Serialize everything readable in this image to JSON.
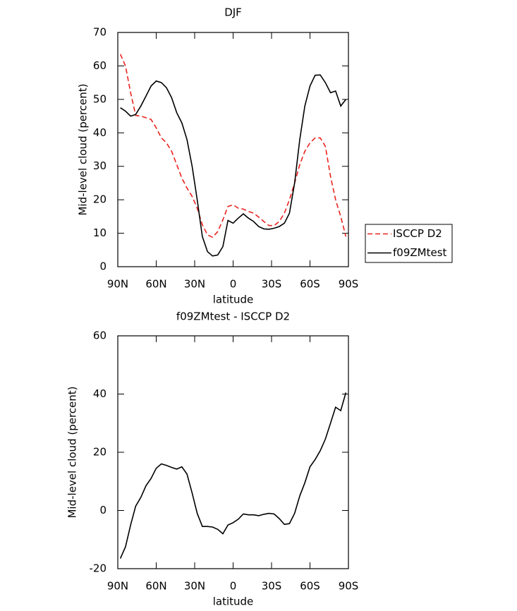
{
  "chart_data": [
    {
      "type": "line",
      "title": "DJF",
      "x_label": "latitude",
      "y_label": "Mid-level cloud (percent)",
      "x": [
        88,
        84,
        80,
        76,
        72,
        68,
        64,
        60,
        56,
        52,
        48,
        44,
        40,
        36,
        32,
        28,
        24,
        20,
        16,
        12,
        8,
        4,
        0,
        -4,
        -8,
        -12,
        -16,
        -20,
        -24,
        -28,
        -32,
        -36,
        -40,
        -44,
        -48,
        -52,
        -56,
        -60,
        -64,
        -68,
        -72,
        -76,
        -80,
        -84,
        -88
      ],
      "series": [
        {
          "name": "ISCCP D2",
          "color": "#e8231e",
          "dashed": true,
          "values": [
            63.5,
            60,
            52,
            45.2,
            45,
            44.5,
            44,
            41.5,
            38.5,
            37,
            34.5,
            30.5,
            26.5,
            23.5,
            21,
            17.5,
            12.5,
            9.5,
            8.8,
            10.5,
            14,
            18,
            18.5,
            17.5,
            17.2,
            16.5,
            16,
            14.8,
            13.5,
            12.3,
            12.3,
            13.5,
            16,
            20,
            25,
            30.5,
            34.5,
            37,
            38.5,
            38.5,
            36,
            27,
            20,
            15,
            9
          ]
        },
        {
          "name": "f09ZMtest",
          "color": "#000000",
          "dashed": false,
          "values": [
            47.5,
            46.5,
            45,
            45.5,
            48,
            51,
            54,
            55.5,
            55,
            53.5,
            50.5,
            46,
            43,
            38,
            30,
            20,
            9,
            4.5,
            3.2,
            3.5,
            6,
            13.8,
            13,
            14.5,
            15.8,
            14.5,
            13.5,
            12,
            11.3,
            11.2,
            11.5,
            12,
            13,
            16,
            25,
            38,
            48,
            54,
            57.2,
            57.3,
            55,
            52,
            52.5,
            48,
            50
          ]
        }
      ],
      "xlim": [
        90,
        -90
      ],
      "xticks": [
        {
          "value": 90,
          "label": "90N"
        },
        {
          "value": 60,
          "label": "60N"
        },
        {
          "value": 30,
          "label": "30N"
        },
        0,
        {
          "value": -30,
          "label": "30S"
        },
        {
          "value": -60,
          "label": "60S"
        },
        {
          "value": -90,
          "label": "90S"
        }
      ],
      "ylim": [
        0,
        70
      ],
      "yticks": [
        0,
        10,
        20,
        30,
        40,
        50,
        60,
        70
      ],
      "legend": "outside-right"
    },
    {
      "type": "line",
      "title": "f09ZMtest - ISCCP D2",
      "x_label": "latitude",
      "y_label": "Mid-level cloud (percent)",
      "x": [
        88,
        84,
        80,
        76,
        72,
        68,
        64,
        60,
        56,
        52,
        48,
        44,
        40,
        36,
        32,
        28,
        24,
        20,
        16,
        12,
        8,
        4,
        0,
        -4,
        -8,
        -12,
        -16,
        -20,
        -24,
        -28,
        -32,
        -36,
        -40,
        -44,
        -48,
        -52,
        -56,
        -60,
        -64,
        -68,
        -72,
        -76,
        -80,
        -84,
        -88
      ],
      "series": [
        {
          "color": "#000000",
          "dashed": false,
          "values": [
            -16.5,
            -12.5,
            -5,
            1.5,
            4.5,
            8.5,
            11,
            14.5,
            16,
            15.5,
            14.8,
            14.2,
            15,
            12.5,
            6,
            -1,
            -5.5,
            -5.5,
            -5.7,
            -6.5,
            -8,
            -5,
            -4.2,
            -3,
            -1.2,
            -1.5,
            -1.5,
            -1.8,
            -1.3,
            -1,
            -1.2,
            -2.8,
            -4.8,
            -4.5,
            -1,
            5,
            9.5,
            15,
            17.5,
            20.5,
            24.5,
            30,
            35.5,
            34.3,
            40.5
          ]
        }
      ],
      "xlim": [
        90,
        -90
      ],
      "xticks": [
        {
          "value": 90,
          "label": "90N"
        },
        {
          "value": 60,
          "label": "60N"
        },
        {
          "value": 30,
          "label": "30N"
        },
        0,
        {
          "value": -30,
          "label": "30S"
        },
        {
          "value": -60,
          "label": "60S"
        },
        {
          "value": -90,
          "label": "90S"
        }
      ],
      "ylim": [
        -20,
        60
      ],
      "yticks": [
        -20,
        0,
        20,
        40,
        60
      ]
    }
  ]
}
